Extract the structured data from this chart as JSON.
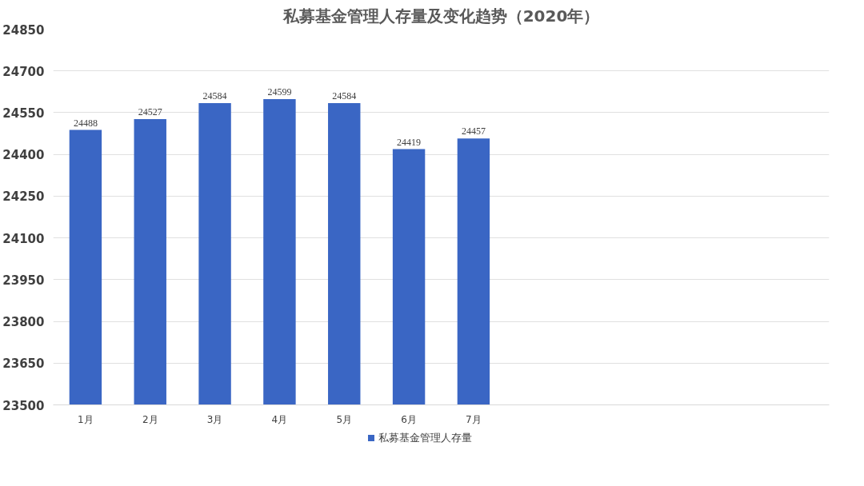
{
  "chart_data": {
    "type": "bar",
    "title": "私募基金管理人存量及变化趋势（2020年）",
    "categories": [
      "1月",
      "2月",
      "3月",
      "4月",
      "5月",
      "6月",
      "7月",
      null,
      null,
      null,
      null,
      null
    ],
    "series": [
      {
        "name": "私募基金管理人存量",
        "color": "#3a66c4",
        "values": [
          24488,
          24527,
          24584,
          24599,
          24584,
          24419,
          24457,
          null,
          null,
          null,
          null,
          null
        ]
      }
    ],
    "ylim": [
      23500,
      24850
    ],
    "yticks": [
      23500,
      23650,
      23800,
      23950,
      24100,
      24250,
      24400,
      24550,
      24700,
      24850
    ],
    "grid": "y",
    "legend": "bottom",
    "data_labels": true
  }
}
